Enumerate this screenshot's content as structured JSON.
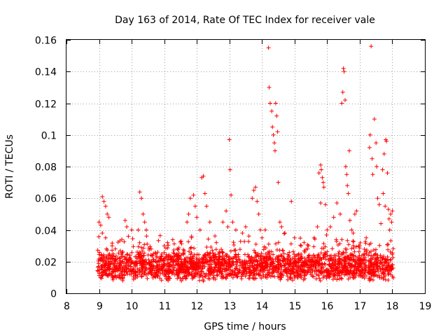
{
  "chart_data": {
    "type": "scatter",
    "title": "Day 163 of 2014, Rate Of TEC Index for receiver vale",
    "xlabel": "GPS time / hours",
    "ylabel": "ROTI / TECUs",
    "xlim": [
      8,
      19
    ],
    "ylim": [
      0,
      0.16
    ],
    "xticks": [
      "8",
      "9",
      "10",
      "11",
      "12",
      "13",
      "14",
      "15",
      "16",
      "17",
      "18",
      "19"
    ],
    "yticks": [
      "0",
      "0.02",
      "0.04",
      "0.06",
      "0.08",
      "0.1",
      "0.12",
      "0.14",
      "0.16"
    ],
    "grid": true,
    "marker": "+",
    "color": "#ff0000",
    "series": [
      {
        "name": "ROTI",
        "points": [
          [
            9.0,
            0.045
          ],
          [
            9.05,
            0.043
          ],
          [
            9.1,
            0.061
          ],
          [
            9.15,
            0.058
          ],
          [
            9.2,
            0.055
          ],
          [
            9.25,
            0.05
          ],
          [
            9.3,
            0.048
          ],
          [
            9.1,
            0.038
          ],
          [
            9.2,
            0.035
          ],
          [
            9.4,
            0.03
          ],
          [
            9.5,
            0.028
          ],
          [
            9.7,
            0.034
          ],
          [
            9.8,
            0.046
          ],
          [
            9.9,
            0.036
          ],
          [
            9.85,
            0.042
          ],
          [
            10.0,
            0.04
          ],
          [
            10.2,
            0.04
          ],
          [
            10.25,
            0.064
          ],
          [
            10.3,
            0.06
          ],
          [
            10.35,
            0.05
          ],
          [
            10.4,
            0.045
          ],
          [
            10.45,
            0.04
          ],
          [
            10.6,
            0.028
          ],
          [
            10.8,
            0.026
          ],
          [
            11.0,
            0.03
          ],
          [
            11.1,
            0.032
          ],
          [
            11.4,
            0.028
          ],
          [
            11.7,
            0.045
          ],
          [
            11.75,
            0.05
          ],
          [
            11.8,
            0.06
          ],
          [
            11.9,
            0.062
          ],
          [
            11.95,
            0.055
          ],
          [
            12.0,
            0.048
          ],
          [
            12.1,
            0.04
          ],
          [
            12.15,
            0.073
          ],
          [
            12.2,
            0.074
          ],
          [
            12.25,
            0.063
          ],
          [
            12.3,
            0.055
          ],
          [
            12.4,
            0.045
          ],
          [
            12.6,
            0.032
          ],
          [
            12.8,
            0.045
          ],
          [
            12.9,
            0.052
          ],
          [
            12.95,
            0.042
          ],
          [
            13.0,
            0.097
          ],
          [
            13.02,
            0.078
          ],
          [
            13.05,
            0.062
          ],
          [
            13.1,
            0.045
          ],
          [
            13.2,
            0.04
          ],
          [
            13.4,
            0.038
          ],
          [
            13.5,
            0.042
          ],
          [
            13.7,
            0.06
          ],
          [
            13.75,
            0.065
          ],
          [
            13.8,
            0.067
          ],
          [
            13.85,
            0.058
          ],
          [
            13.9,
            0.05
          ],
          [
            13.95,
            0.04
          ],
          [
            14.0,
            0.035
          ],
          [
            14.1,
            0.04
          ],
          [
            14.2,
            0.155
          ],
          [
            14.22,
            0.13
          ],
          [
            14.25,
            0.12
          ],
          [
            14.3,
            0.115
          ],
          [
            14.32,
            0.105
          ],
          [
            14.35,
            0.1
          ],
          [
            14.38,
            0.095
          ],
          [
            14.4,
            0.09
          ],
          [
            14.42,
            0.12
          ],
          [
            14.45,
            0.112
          ],
          [
            14.48,
            0.102
          ],
          [
            14.5,
            0.07
          ],
          [
            14.55,
            0.045
          ],
          [
            14.6,
            0.042
          ],
          [
            14.7,
            0.038
          ],
          [
            14.9,
            0.058
          ],
          [
            15.0,
            0.035
          ],
          [
            15.2,
            0.03
          ],
          [
            15.4,
            0.028
          ],
          [
            15.6,
            0.035
          ],
          [
            15.7,
            0.042
          ],
          [
            15.75,
            0.076
          ],
          [
            15.8,
            0.081
          ],
          [
            15.82,
            0.078
          ],
          [
            15.85,
            0.073
          ],
          [
            15.88,
            0.07
          ],
          [
            15.9,
            0.067
          ],
          [
            15.8,
            0.057
          ],
          [
            15.95,
            0.056
          ],
          [
            16.0,
            0.04
          ],
          [
            16.1,
            0.042
          ],
          [
            16.2,
            0.048
          ],
          [
            16.3,
            0.057
          ],
          [
            16.4,
            0.05
          ],
          [
            16.45,
            0.12
          ],
          [
            16.48,
            0.127
          ],
          [
            16.5,
            0.142
          ],
          [
            16.52,
            0.14
          ],
          [
            16.55,
            0.122
          ],
          [
            16.57,
            0.08
          ],
          [
            16.6,
            0.075
          ],
          [
            16.62,
            0.068
          ],
          [
            16.65,
            0.063
          ],
          [
            16.68,
            0.09
          ],
          [
            16.7,
            0.046
          ],
          [
            16.75,
            0.04
          ],
          [
            16.8,
            0.038
          ],
          [
            16.85,
            0.05
          ],
          [
            16.9,
            0.052
          ],
          [
            17.0,
            0.03
          ],
          [
            17.2,
            0.035
          ],
          [
            17.3,
            0.092
          ],
          [
            17.32,
            0.1
          ],
          [
            17.35,
            0.156
          ],
          [
            17.38,
            0.085
          ],
          [
            17.4,
            0.075
          ],
          [
            17.45,
            0.11
          ],
          [
            17.5,
            0.095
          ],
          [
            17.52,
            0.08
          ],
          [
            17.55,
            0.06
          ],
          [
            17.6,
            0.056
          ],
          [
            17.65,
            0.044
          ],
          [
            17.7,
            0.078
          ],
          [
            17.72,
            0.063
          ],
          [
            17.75,
            0.088
          ],
          [
            17.78,
            0.055
          ],
          [
            17.8,
            0.097
          ],
          [
            17.82,
            0.096
          ],
          [
            17.85,
            0.076
          ],
          [
            17.88,
            0.053
          ],
          [
            17.9,
            0.047
          ],
          [
            17.95,
            0.05
          ],
          [
            18.0,
            0.052
          ],
          [
            17.92,
            0.04
          ],
          [
            17.98,
            0.045
          ]
        ],
        "dense_band": {
          "x_range": [
            8.95,
            18.05
          ],
          "base_values": [
            0.012,
            0.018
          ],
          "spread": 0.008
        }
      }
    ]
  }
}
